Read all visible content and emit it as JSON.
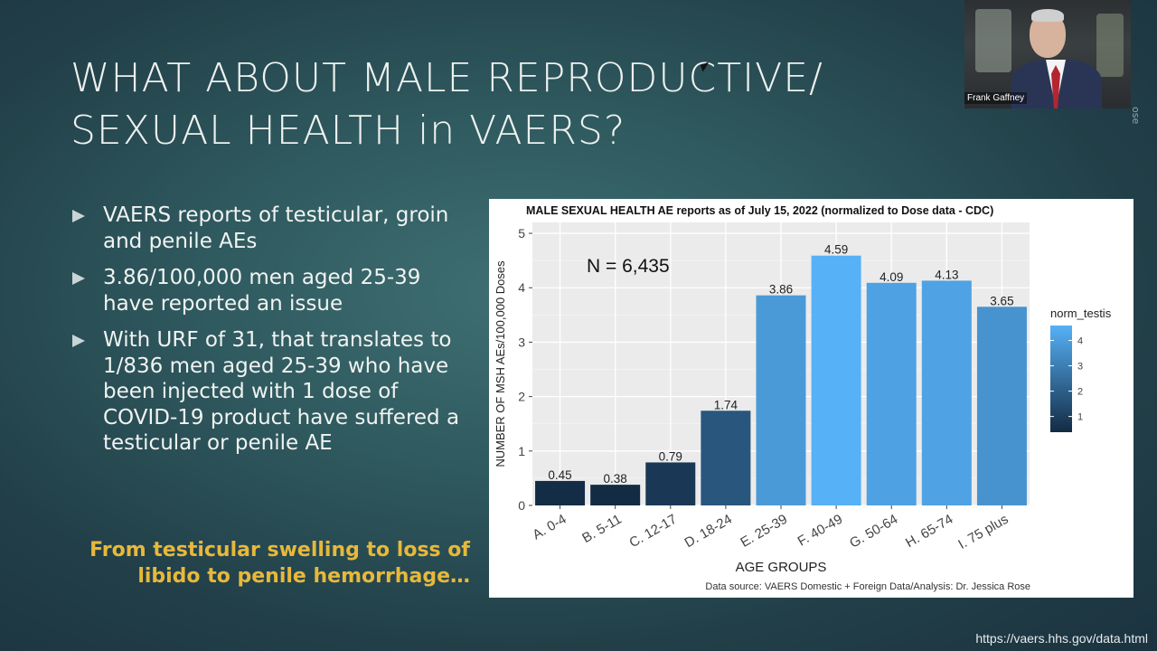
{
  "slide": {
    "title_lines": [
      "WHAT ABOUT MALE REPRODUCTIVE/",
      "SEXUAL HEALTH in VAERS?"
    ],
    "bullets": [
      "VAERS reports of testicular, groin and penile AEs",
      "3.86/100,000 men aged 25-39 have reported an issue",
      "With URF of 31, that translates to 1/836 men aged 25-39 who have been injected with 1 dose of COVID-19 product have suffered a testicular or penile AE"
    ],
    "quote": "From testicular swelling to loss of libido to penile hemorrhage…",
    "url": "https://vaers.hhs.gov/data.html"
  },
  "video": {
    "participant_name": "Frank Gaffney",
    "edge_text": "ose"
  },
  "chart_data": {
    "type": "bar",
    "title": "MALE SEXUAL HEALTH AE reports as of July 15, 2022 (normalized to Dose data - CDC)",
    "xlabel": "AGE GROUPS",
    "ylabel": "NUMBER OF MSH AEs/100,000 Doses",
    "annotation": "N = 6,435",
    "source": "Data source: VAERS Domestic + Foreign Data/Analysis: Dr. Jessica Rose",
    "categories": [
      "A. 0-4",
      "B. 5-11",
      "C. 12-17",
      "D. 18-24",
      "E. 25-39",
      "F. 40-49",
      "G. 50-64",
      "H. 65-74",
      "I. 75 plus"
    ],
    "values": [
      0.45,
      0.38,
      0.79,
      1.74,
      3.86,
      4.59,
      4.09,
      4.13,
      3.65
    ],
    "value_labels": [
      "0.45",
      "0.38",
      "0.79",
      "1.74",
      "3.86",
      "4.59",
      "4.09",
      "4.13",
      "3.65"
    ],
    "ylim": [
      0,
      5.2
    ],
    "yticks": [
      0,
      1,
      2,
      3,
      4,
      5
    ],
    "grid": true,
    "panel_bg": "#ebebeb",
    "legend": {
      "title": "norm_testis",
      "ticks": [
        1,
        2,
        3,
        4
      ],
      "color_low": "#132b43",
      "color_high": "#56b1f7",
      "range": [
        0.38,
        4.59
      ],
      "position": "right"
    }
  }
}
